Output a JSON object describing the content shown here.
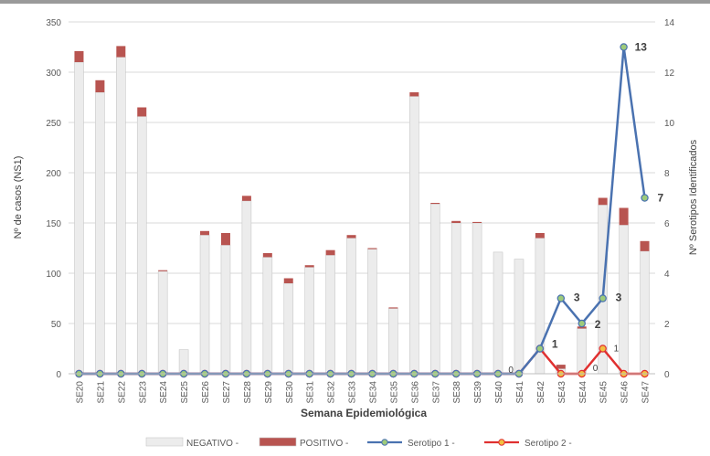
{
  "chart_data": {
    "type": "bar",
    "xlabel": "Semana Epidemiológica",
    "ylabel_left": "Nº de casos (NS1)",
    "ylabel_right": "Nº Serotipos Identificados",
    "ylim_left": [
      0,
      350
    ],
    "yticks_left": [
      0,
      50,
      100,
      150,
      200,
      250,
      300,
      350
    ],
    "ylim_right": [
      0,
      14
    ],
    "yticks_right": [
      0,
      2,
      4,
      6,
      8,
      10,
      12,
      14
    ],
    "grid": true,
    "legend_position": "bottom",
    "categories": [
      "SE20",
      "SE21",
      "SE22",
      "SE23",
      "SE24",
      "SE25",
      "SE26",
      "SE27",
      "SE28",
      "SE29",
      "SE30",
      "SE31",
      "SE32",
      "SE33",
      "SE34",
      "SE35",
      "SE36",
      "SE37",
      "SE38",
      "SE39",
      "SE40",
      "SE41",
      "SE42",
      "SE43",
      "SE44",
      "SE45",
      "SE46",
      "SE47"
    ],
    "series": [
      {
        "name": "NEGATIVO -",
        "type": "bar",
        "axis": "left",
        "color": "#ececec",
        "values": [
          310,
          280,
          315,
          256,
          102,
          24,
          138,
          128,
          172,
          116,
          90,
          106,
          118,
          135,
          124,
          65,
          276,
          169,
          150,
          150,
          121,
          114,
          135,
          5,
          45,
          168,
          148,
          122
        ]
      },
      {
        "name": "POSITIVO -",
        "type": "bar",
        "axis": "left",
        "color": "#b85450",
        "values": [
          11,
          12,
          11,
          9,
          1,
          0,
          4,
          12,
          5,
          4,
          5,
          2,
          5,
          3,
          1,
          1,
          4,
          1,
          2,
          1,
          0,
          0,
          5,
          4,
          2,
          7,
          17,
          10
        ]
      },
      {
        "name": "Serotipo 1 -",
        "type": "line",
        "axis": "right",
        "color": "#4a72b0",
        "marker_fill": "#9ecb7a",
        "values": [
          0,
          0,
          0,
          0,
          0,
          0,
          0,
          0,
          0,
          0,
          0,
          0,
          0,
          0,
          0,
          0,
          0,
          0,
          0,
          0,
          0,
          0,
          1,
          3,
          2,
          3,
          13,
          7
        ]
      },
      {
        "name": "Serotipo 2 -",
        "type": "line",
        "axis": "right",
        "color": "#e03030",
        "marker_fill": "#f2c040",
        "values": [
          0,
          0,
          0,
          0,
          0,
          0,
          0,
          0,
          0,
          0,
          0,
          0,
          0,
          0,
          0,
          0,
          0,
          0,
          0,
          0,
          0,
          0,
          1,
          0,
          0,
          1,
          0,
          0
        ]
      }
    ],
    "annotations": [
      {
        "index": 21,
        "text": "0"
      },
      {
        "index": 22,
        "text": "1"
      },
      {
        "index": 23,
        "text": "3"
      },
      {
        "index": 24,
        "text": "2"
      },
      {
        "index": 24,
        "text": "0"
      },
      {
        "index": 25,
        "text": "3"
      },
      {
        "index": 25,
        "text": "1"
      },
      {
        "index": 26,
        "text": "13"
      },
      {
        "index": 27,
        "text": "7"
      }
    ]
  }
}
